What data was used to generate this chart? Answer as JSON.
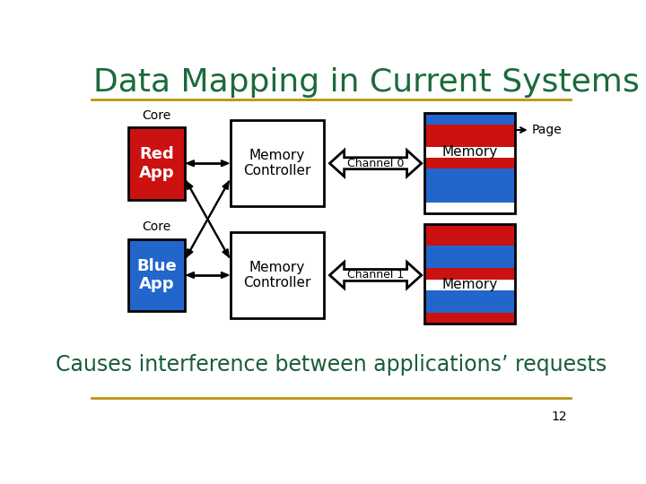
{
  "title": "Data Mapping in Current Systems",
  "title_color": "#1a6b3a",
  "title_fontsize": 26,
  "bg_color": "#ffffff",
  "separator_color": "#b8960c",
  "subtitle": "Causes interference between applications’ requests",
  "subtitle_color": "#1a5c38",
  "subtitle_fontsize": 17,
  "page_number": "12",
  "red_app_color": "#cc1111",
  "blue_app_color": "#2266cc",
  "memory_red_color": "#cc1111",
  "memory_blue_color": "#2266cc",
  "box_edge_color": "#000000",
  "arrow_color": "#000000",
  "core_label_color": "#000000",
  "top_stripe_pattern": [
    "blue",
    "red",
    "red",
    "white",
    "red",
    "blue",
    "blue",
    "blue",
    "white"
  ],
  "bot_stripe_pattern": [
    "red",
    "red",
    "blue",
    "blue",
    "red",
    "white",
    "blue",
    "blue",
    "red"
  ]
}
